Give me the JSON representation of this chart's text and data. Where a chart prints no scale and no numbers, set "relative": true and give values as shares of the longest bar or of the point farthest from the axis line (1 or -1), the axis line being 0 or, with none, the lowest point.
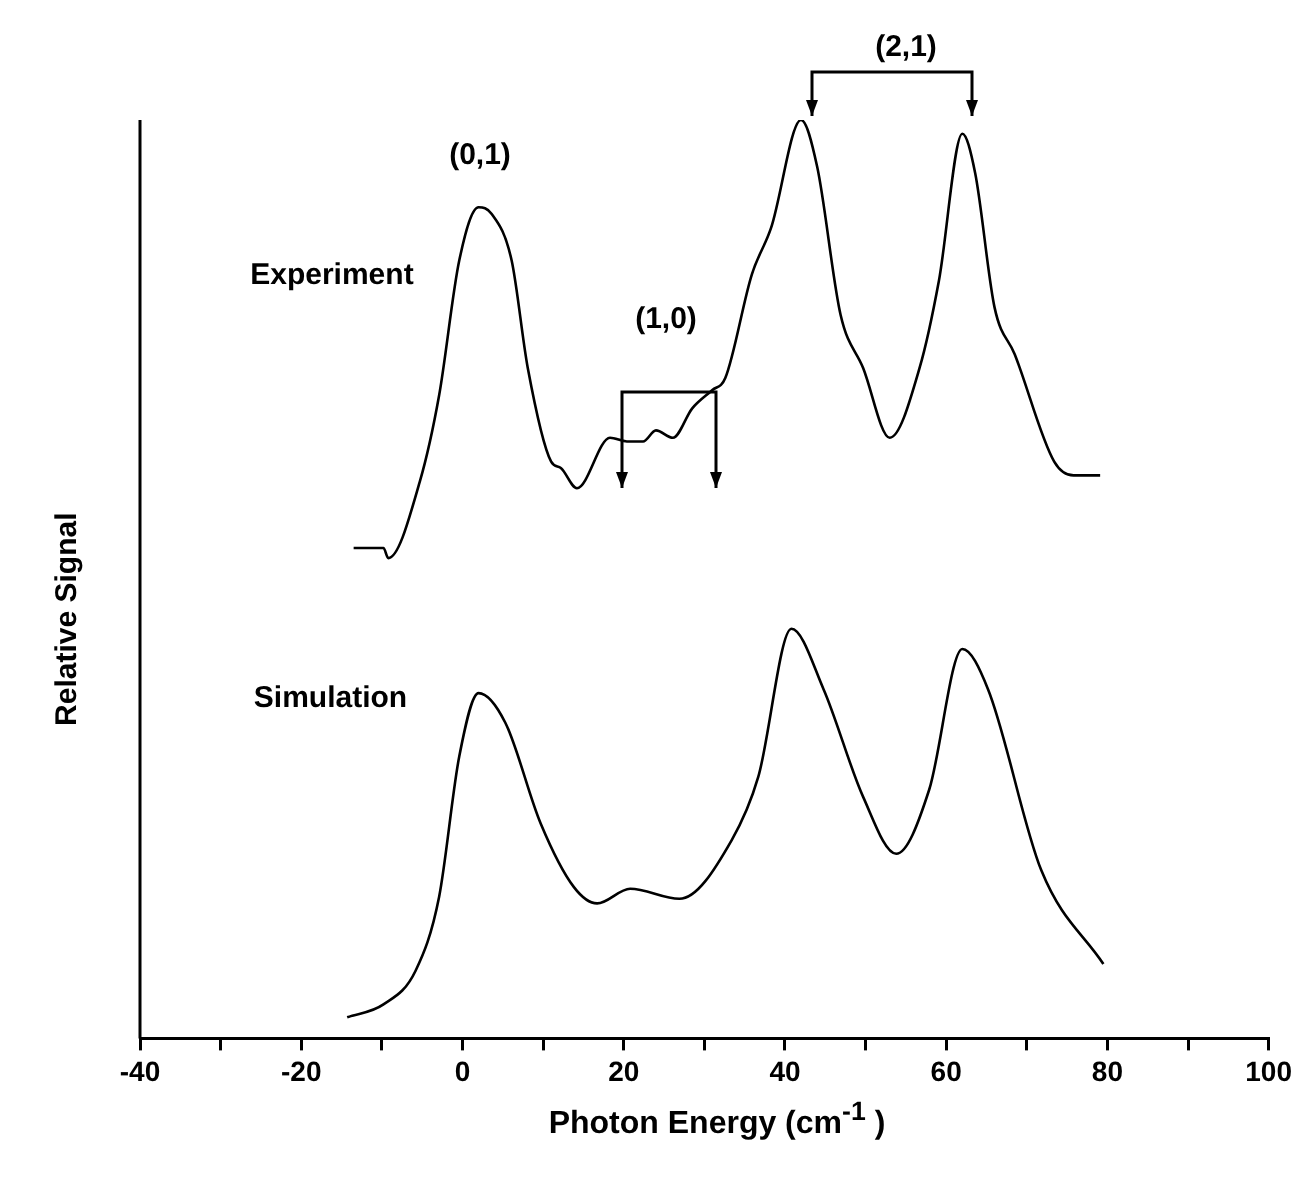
{
  "chart_data": {
    "type": "line",
    "relative": true,
    "xlabel": "Photon Energy (cm$^{-1}$ )",
    "ylabel": "Relative Signal",
    "xlim": [
      -40,
      100
    ],
    "xticks": [
      -40,
      {
        "value": -30,
        "label": null
      },
      -20,
      {
        "value": -10,
        "label": null
      },
      0,
      {
        "value": 10,
        "label": null
      },
      20,
      {
        "value": 30,
        "label": null
      },
      40,
      {
        "value": 50,
        "label": null
      },
      60,
      {
        "value": 70,
        "label": null
      },
      80,
      {
        "value": 90,
        "label": null
      },
      100
    ],
    "grid": false,
    "legend": false,
    "marker": "none",
    "line_style": "solid",
    "annotations": [
      "(0,1)",
      "(1,0)",
      "(2,1)"
    ],
    "series": [
      {
        "name": "Experiment",
        "color": "#000000",
        "x": [
          -13.5,
          -9.8,
          -9.2,
          -5.3,
          -2.9,
          -0.4,
          2.0,
          3.6,
          6.1,
          8.1,
          11.0,
          12.2,
          14.2,
          18.3,
          20.4,
          22.4,
          24.0,
          26.1,
          28.5,
          31.0,
          32.6,
          35.9,
          38.3,
          42.0,
          44.0,
          46.9,
          49.7,
          53.0,
          56.7,
          59.1,
          62.0,
          63.6,
          66.0,
          68.5,
          73.4,
          75.8,
          79.1
        ],
        "values": [
          0.534,
          0.534,
          0.523,
          0.606,
          0.7,
          0.847,
          0.905,
          0.898,
          0.847,
          0.73,
          0.628,
          0.621,
          0.599,
          0.654,
          0.65,
          0.65,
          0.662,
          0.654,
          0.686,
          0.706,
          0.719,
          0.832,
          0.883,
          1.0,
          0.949,
          0.788,
          0.73,
          0.654,
          0.73,
          0.825,
          0.985,
          0.942,
          0.796,
          0.745,
          0.628,
          0.613,
          0.613
        ]
      },
      {
        "name": "Simulation",
        "color": "#000000",
        "x": [
          -14.3,
          -9.8,
          -5.8,
          -2.9,
          -0.4,
          2.0,
          5.3,
          9.7,
          13.8,
          16.7,
          20.8,
          26.9,
          33.4,
          36.7,
          40.8,
          44.8,
          49.7,
          53.8,
          57.9,
          62.0,
          65.2,
          71.8,
          79.5
        ],
        "values": [
          0.023,
          0.037,
          0.074,
          0.154,
          0.307,
          0.376,
          0.344,
          0.234,
          0.165,
          0.147,
          0.163,
          0.152,
          0.216,
          0.285,
          0.446,
          0.38,
          0.263,
          0.201,
          0.271,
          0.424,
          0.38,
          0.183,
          0.081
        ]
      }
    ]
  }
}
